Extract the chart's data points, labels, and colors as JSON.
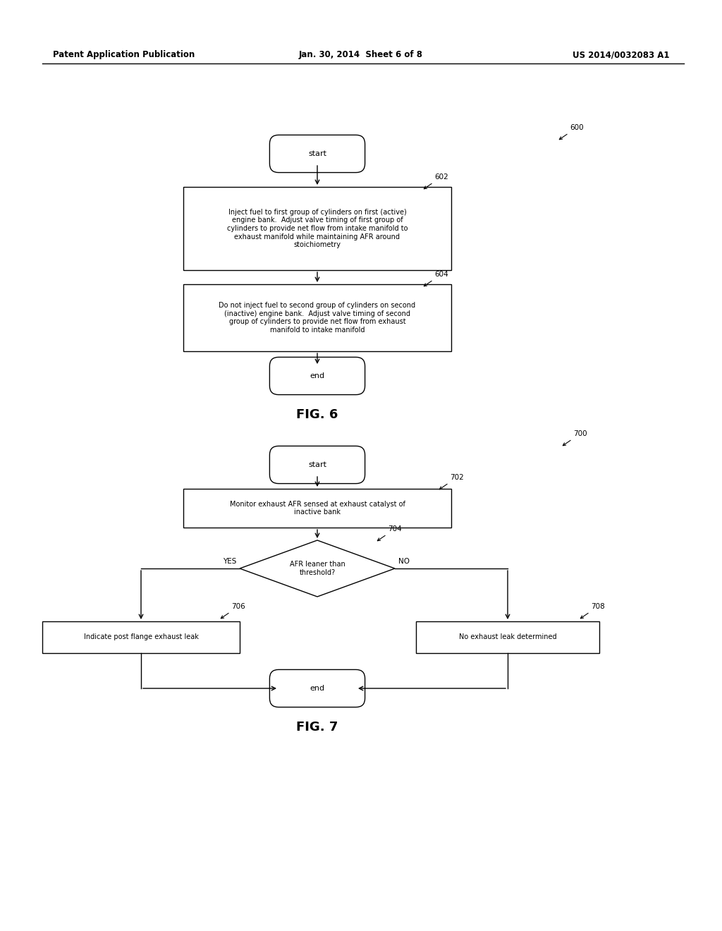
{
  "header_left": "Patent Application Publication",
  "header_center": "Jan. 30, 2014  Sheet 6 of 8",
  "header_right": "US 2014/0032083 A1",
  "fig6_label": "FIG. 6",
  "fig7_label": "FIG. 7",
  "bg_color": "#ffffff",
  "font_size_header": 8.5,
  "font_size_body": 7.0,
  "font_size_fig_label": 13,
  "font_size_ref": 7.5,
  "box602_text": "Inject fuel to first group of cylinders on first (active)\nengine bank.  Adjust valve timing of first group of\ncylinders to provide net flow from intake manifold to\nexhaust manifold while maintaining AFR around\nstoichiometry",
  "box604_text": "Do not inject fuel to second group of cylinders on second\n(inactive) engine bank.  Adjust valve timing of second\ngroup of cylinders to provide net flow from exhaust\nmanifold to intake manifold",
  "box702_text": "Monitor exhaust AFR sensed at exhaust catalyst of\ninactive bank",
  "diamond704_text": "AFR leaner than\nthreshold?",
  "box706_text": "Indicate post flange exhaust leak",
  "box708_text": "No exhaust leak determined"
}
